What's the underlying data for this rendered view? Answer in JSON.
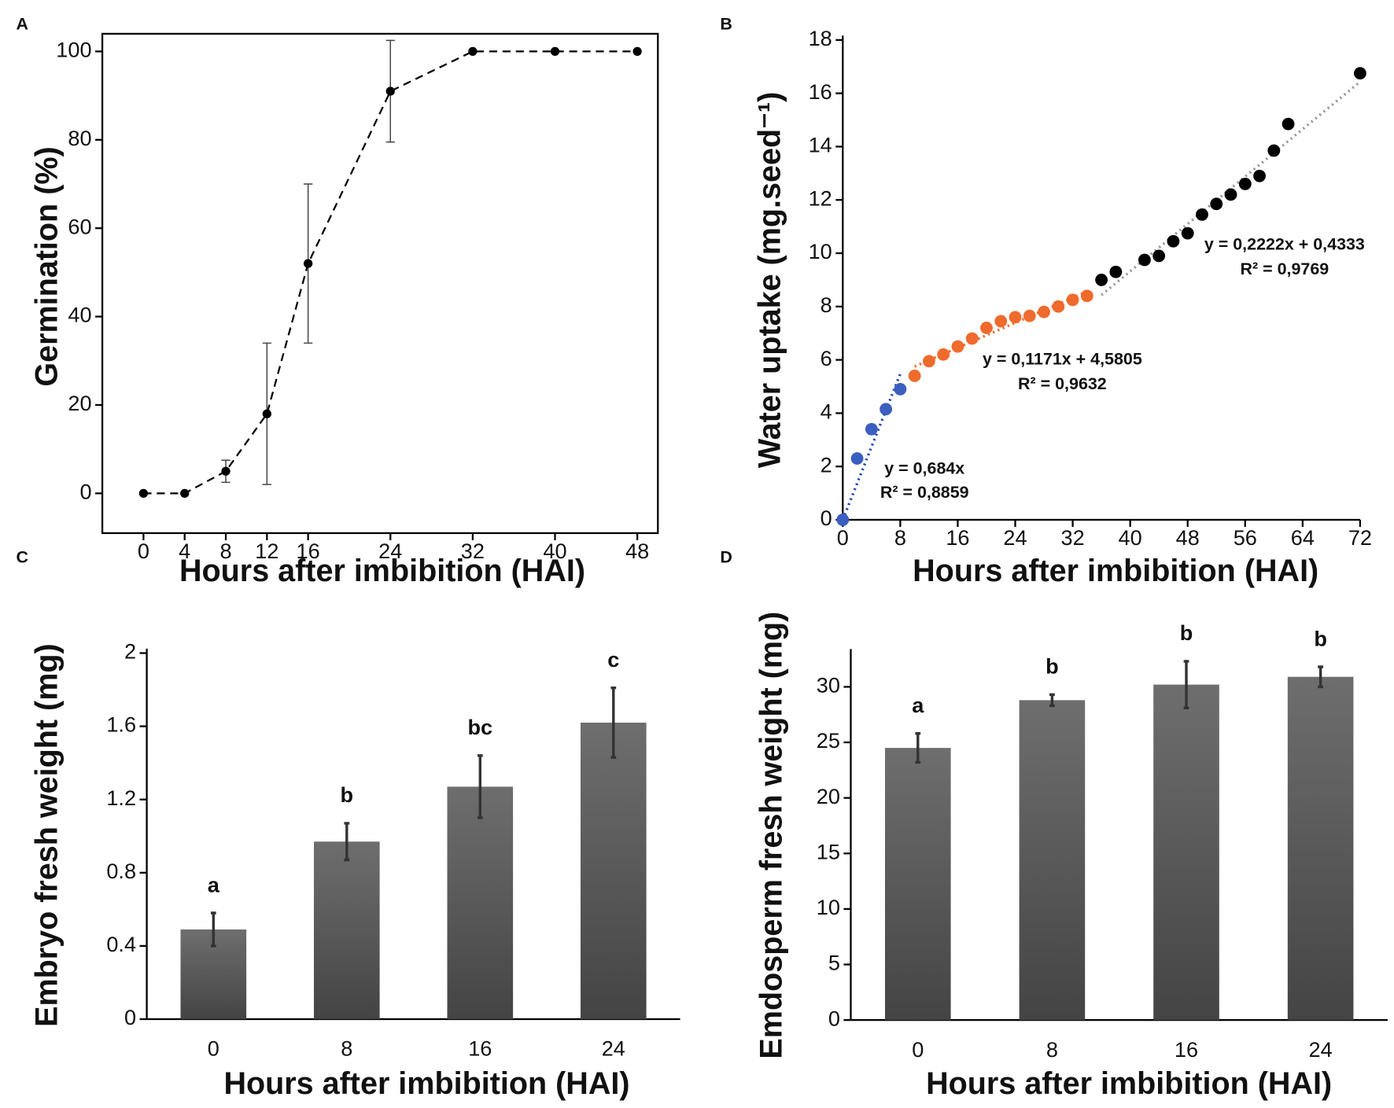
{
  "chart_data": [
    {
      "type": "line",
      "panel": "A",
      "xlabel": "Hours after imbibition (HAI)",
      "ylabel": "Germination (%)",
      "x": [
        0,
        4,
        8,
        12,
        16,
        24,
        32,
        40,
        48
      ],
      "values": [
        0,
        0,
        5,
        18,
        52,
        91,
        100,
        100,
        100
      ],
      "errors": [
        0,
        0,
        2.5,
        16,
        18,
        11.5,
        0,
        0,
        0
      ],
      "color": "#000000",
      "xlim": [
        -4,
        50
      ],
      "xticks": [
        0,
        4,
        8,
        12,
        16,
        24,
        32,
        40,
        48
      ],
      "ylim": [
        -9,
        104
      ],
      "yticks": [
        0,
        20,
        40,
        60,
        80,
        100
      ]
    },
    {
      "type": "scatter",
      "panel": "B",
      "xlabel": "Hours after imbibition (HAI)",
      "ylabel": "Water uptake (mg.seed⁻¹)",
      "xlim": [
        0,
        72
      ],
      "xticks": [
        0,
        8,
        16,
        24,
        32,
        40,
        48,
        56,
        64,
        72
      ],
      "ylim": [
        0,
        18
      ],
      "yticks": [
        0,
        2,
        4,
        6,
        8,
        10,
        12,
        14,
        16,
        18
      ],
      "series": [
        {
          "color": "#3a5fbf",
          "x": [
            0,
            2,
            4,
            6,
            8
          ],
          "values": [
            0,
            2.3,
            3.4,
            4.15,
            4.9
          ],
          "trendline": {
            "slope": 0.684,
            "intercept": 0,
            "color": "#1f45b5",
            "equation": "y = 0,684x",
            "r2": "R² = 0,8859"
          }
        },
        {
          "color": "#ef6b2d",
          "x": [
            10,
            12,
            14,
            16,
            18,
            20,
            22,
            24,
            26,
            28,
            30,
            32,
            34
          ],
          "values": [
            5.4,
            5.95,
            6.2,
            6.5,
            6.8,
            7.2,
            7.45,
            7.6,
            7.65,
            7.8,
            8.0,
            8.25,
            8.4
          ],
          "trendline": {
            "slope": 0.1171,
            "intercept": 4.5805,
            "color": "#ef6b2d",
            "equation": "y = 0,1171x + 4,5805",
            "r2": "R² = 0,9632"
          }
        },
        {
          "color": "#000000",
          "x": [
            36,
            38,
            42,
            44,
            46,
            48,
            50,
            52,
            54,
            56,
            58,
            60,
            62,
            72
          ],
          "values": [
            9.0,
            9.3,
            9.75,
            9.9,
            10.45,
            10.75,
            11.45,
            11.85,
            12.2,
            12.6,
            12.9,
            13.85,
            14.85,
            16.75
          ],
          "trendline": {
            "slope": 0.2222,
            "intercept": 0.4333,
            "color": "#999999",
            "equation": "y = 0,2222x + 0,4333",
            "r2": "R² = 0,9769"
          }
        }
      ]
    },
    {
      "type": "bar",
      "panel": "C",
      "xlabel": "Hours after imbibition (HAI)",
      "ylabel": "Embryo fresh weight (mg)",
      "categories": [
        "0",
        "8",
        "16",
        "24"
      ],
      "values": [
        0.49,
        0.97,
        1.27,
        1.62
      ],
      "errors": [
        0.09,
        0.1,
        0.17,
        0.19
      ],
      "letters": [
        "a",
        "b",
        "bc",
        "c"
      ],
      "color": "#555555",
      "ylim": [
        0,
        2
      ],
      "yticks": [
        0,
        0.4,
        0.8,
        1.2,
        1.6,
        2
      ]
    },
    {
      "type": "bar",
      "panel": "D",
      "xlabel": "Hours after imbibition (HAI)",
      "ylabel": "Emdosperm fresh weight (mg)",
      "categories": [
        "0",
        "8",
        "16",
        "24"
      ],
      "values": [
        24.5,
        28.8,
        30.2,
        30.9
      ],
      "errors": [
        1.3,
        0.5,
        2.1,
        0.9
      ],
      "letters": [
        "a",
        "b",
        "b",
        "b"
      ],
      "color": "#555555",
      "ylim": [
        0,
        33
      ],
      "yticks": [
        0,
        5,
        10,
        15,
        20,
        25,
        30
      ]
    }
  ]
}
